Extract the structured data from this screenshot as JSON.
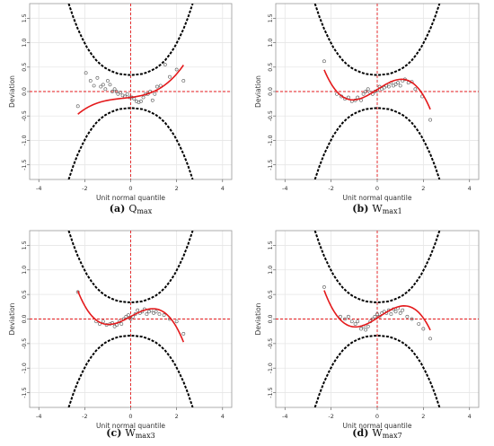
{
  "chart_data": [
    {
      "type": "scatter",
      "caption_letter": "(a)",
      "caption_main": "Q",
      "caption_sub": "max",
      "xlabel": "Unit normal quantile",
      "ylabel": "Deviation",
      "xlim": [
        -4.4,
        4.4
      ],
      "ylim": [
        -1.8,
        1.8
      ],
      "xticks": [
        -4,
        -2,
        0,
        2,
        4
      ],
      "yticks": [
        -1.5,
        -1.0,
        -0.5,
        0.0,
        0.5,
        1.0,
        1.5
      ],
      "xtick_labels": [
        "-4",
        "-2",
        "0",
        "2",
        "4"
      ],
      "ytick_labels": [
        "-1.5",
        "-1.0",
        "-0.5",
        "0.0",
        "0.5",
        "1.0",
        "1.5"
      ],
      "grid": true,
      "fit_poly": [
        -0.12,
        0.06,
        0.03,
        0.03
      ],
      "fit_range": [
        -2.3,
        2.3
      ],
      "points": [
        [
          -2.3,
          -0.3
        ],
        [
          -1.95,
          0.38
        ],
        [
          -1.75,
          0.22
        ],
        [
          -1.6,
          0.12
        ],
        [
          -1.45,
          0.28
        ],
        [
          -1.3,
          0.1
        ],
        [
          -1.2,
          0.14
        ],
        [
          -1.1,
          0.05
        ],
        [
          -1.0,
          0.22
        ],
        [
          -0.9,
          0.14
        ],
        [
          -0.8,
          0.0
        ],
        [
          -0.7,
          0.05
        ],
        [
          -0.62,
          0.0
        ],
        [
          -0.55,
          -0.05
        ],
        [
          -0.45,
          -0.02
        ],
        [
          -0.35,
          -0.08
        ],
        [
          -0.25,
          -0.1
        ],
        [
          -0.15,
          -0.05
        ],
        [
          -0.05,
          -0.12
        ],
        [
          0.05,
          -0.12
        ],
        [
          0.15,
          -0.15
        ],
        [
          0.25,
          -0.2
        ],
        [
          0.35,
          -0.22
        ],
        [
          0.45,
          -0.2
        ],
        [
          0.55,
          -0.12
        ],
        [
          0.65,
          -0.05
        ],
        [
          0.75,
          -0.05
        ],
        [
          0.85,
          0.0
        ],
        [
          0.95,
          -0.18
        ],
        [
          1.05,
          -0.05
        ],
        [
          1.15,
          0.1
        ],
        [
          1.3,
          0.12
        ],
        [
          1.5,
          0.55
        ],
        [
          1.7,
          0.3
        ],
        [
          2.0,
          0.45
        ],
        [
          2.3,
          0.22
        ]
      ],
      "confidence_curves": [
        {
          "x": [
            -2.7,
            -2.5,
            -2.3,
            -2.1,
            -1.9,
            -1.7,
            -1.5,
            -1.3,
            -1.1,
            -0.9,
            -0.7,
            -0.5,
            -0.3,
            -0.1,
            0.0,
            0.1,
            0.3,
            0.5,
            0.7,
            0.9,
            1.1,
            1.3,
            1.5,
            1.7,
            1.9,
            2.1,
            2.3,
            2.5,
            2.7
          ],
          "y": [
            1.8,
            1.52,
            1.28,
            1.08,
            0.9,
            0.76,
            0.64,
            0.55,
            0.48,
            0.43,
            0.39,
            0.36,
            0.35,
            0.34,
            0.34,
            0.34,
            0.35,
            0.36,
            0.39,
            0.43,
            0.48,
            0.55,
            0.64,
            0.76,
            0.9,
            1.08,
            1.28,
            1.52,
            1.8
          ]
        },
        {
          "x": [
            -2.7,
            -2.5,
            -2.3,
            -2.1,
            -1.9,
            -1.7,
            -1.5,
            -1.3,
            -1.1,
            -0.9,
            -0.7,
            -0.5,
            -0.3,
            -0.1,
            0.0,
            0.1,
            0.3,
            0.5,
            0.7,
            0.9,
            1.1,
            1.3,
            1.5,
            1.7,
            1.9,
            2.1,
            2.3,
            2.5,
            2.7
          ],
          "y": [
            -1.8,
            -1.52,
            -1.28,
            -1.08,
            -0.9,
            -0.76,
            -0.64,
            -0.55,
            -0.48,
            -0.43,
            -0.39,
            -0.36,
            -0.35,
            -0.34,
            -0.34,
            -0.34,
            -0.35,
            -0.36,
            -0.39,
            -0.43,
            -0.48,
            -0.55,
            -0.64,
            -0.76,
            -0.9,
            -1.08,
            -1.28,
            -1.52,
            -1.8
          ]
        }
      ]
    },
    {
      "type": "scatter",
      "caption_letter": "(b)",
      "caption_main": "W",
      "caption_sub": "max1",
      "xlabel": "Unit normal quantile",
      "ylabel": "Deviation",
      "xlim": [
        -4.4,
        4.4
      ],
      "ylim": [
        -1.8,
        1.8
      ],
      "xticks": [
        -4,
        -2,
        0,
        2,
        4
      ],
      "yticks": [
        -1.5,
        -1.0,
        -0.5,
        0.0,
        0.5,
        1.0,
        1.5
      ],
      "xtick_labels": [
        "-4",
        "-2",
        "0",
        "2",
        "4"
      ],
      "ytick_labels": [
        "-1.5",
        "-1.0",
        "-0.5",
        "0.0",
        "0.5",
        "1.0",
        "1.5"
      ],
      "grid": true,
      "fit_poly": [
        0.04,
        0.3,
        0.0,
        -0.09
      ],
      "fit_range": [
        -2.3,
        2.3
      ],
      "points": [
        [
          -2.3,
          0.62
        ],
        [
          -1.75,
          -0.05
        ],
        [
          -1.55,
          -0.1
        ],
        [
          -1.4,
          -0.15
        ],
        [
          -1.25,
          -0.12
        ],
        [
          -1.1,
          -0.2
        ],
        [
          -0.95,
          -0.18
        ],
        [
          -0.85,
          -0.12
        ],
        [
          -0.7,
          -0.18
        ],
        [
          -0.6,
          -0.05
        ],
        [
          -0.5,
          0.0
        ],
        [
          -0.4,
          0.05
        ],
        [
          -0.3,
          -0.02
        ],
        [
          -0.2,
          -0.05
        ],
        [
          -0.1,
          0.0
        ],
        [
          0.0,
          0.02
        ],
        [
          0.1,
          0.1
        ],
        [
          0.2,
          0.05
        ],
        [
          0.3,
          0.08
        ],
        [
          0.4,
          0.12
        ],
        [
          0.5,
          0.1
        ],
        [
          0.6,
          0.18
        ],
        [
          0.7,
          0.12
        ],
        [
          0.8,
          0.15
        ],
        [
          0.9,
          0.18
        ],
        [
          1.0,
          0.12
        ],
        [
          1.1,
          0.22
        ],
        [
          1.2,
          0.25
        ],
        [
          1.35,
          0.18
        ],
        [
          1.5,
          0.2
        ],
        [
          1.65,
          0.05
        ],
        [
          1.95,
          -0.1
        ],
        [
          2.3,
          -0.58
        ]
      ],
      "confidence_curves": [
        {
          "x": [
            -2.7,
            -2.5,
            -2.3,
            -2.1,
            -1.9,
            -1.7,
            -1.5,
            -1.3,
            -1.1,
            -0.9,
            -0.7,
            -0.5,
            -0.3,
            -0.1,
            0.0,
            0.1,
            0.3,
            0.5,
            0.7,
            0.9,
            1.1,
            1.3,
            1.5,
            1.7,
            1.9,
            2.1,
            2.3,
            2.5,
            2.7
          ],
          "y": [
            1.8,
            1.52,
            1.28,
            1.08,
            0.9,
            0.76,
            0.64,
            0.55,
            0.48,
            0.43,
            0.39,
            0.36,
            0.35,
            0.34,
            0.34,
            0.34,
            0.35,
            0.36,
            0.39,
            0.43,
            0.48,
            0.55,
            0.64,
            0.76,
            0.9,
            1.08,
            1.28,
            1.52,
            1.8
          ]
        },
        {
          "x": [
            -2.7,
            -2.5,
            -2.3,
            -2.1,
            -1.9,
            -1.7,
            -1.5,
            -1.3,
            -1.1,
            -0.9,
            -0.7,
            -0.5,
            -0.3,
            -0.1,
            0.0,
            0.1,
            0.3,
            0.5,
            0.7,
            0.9,
            1.1,
            1.3,
            1.5,
            1.7,
            1.9,
            2.1,
            2.3,
            2.5,
            2.7
          ],
          "y": [
            -1.8,
            -1.52,
            -1.28,
            -1.08,
            -0.9,
            -0.76,
            -0.64,
            -0.55,
            -0.48,
            -0.43,
            -0.39,
            -0.36,
            -0.35,
            -0.34,
            -0.34,
            -0.34,
            -0.35,
            -0.36,
            -0.39,
            -0.43,
            -0.48,
            -0.55,
            -0.64,
            -0.76,
            -0.9,
            -1.08,
            -1.28,
            -1.52,
            -1.8
          ]
        }
      ]
    },
    {
      "type": "scatter",
      "caption_letter": "(c)",
      "caption_main": "W",
      "caption_sub": "max3",
      "xlabel": "Unit normal quantile",
      "ylabel": "Deviation",
      "xlim": [
        -4.4,
        4.4
      ],
      "ylim": [
        -1.8,
        1.8
      ],
      "xticks": [
        -4,
        -2,
        0,
        2,
        4
      ],
      "yticks": [
        -1.5,
        -1.0,
        -0.5,
        0.0,
        0.5,
        1.0,
        1.5
      ],
      "xtick_labels": [
        "-4",
        "-2",
        "0",
        "2",
        "4"
      ],
      "ytick_labels": [
        "-1.5",
        "-1.0",
        "-0.5",
        "0.0",
        "0.5",
        "1.0",
        "1.5"
      ],
      "grid": true,
      "fit_poly": [
        0.05,
        0.25,
        0.0,
        -0.09
      ],
      "fit_range": [
        -2.3,
        2.3
      ],
      "points": [
        [
          -2.3,
          0.55
        ],
        [
          -1.5,
          -0.05
        ],
        [
          -1.35,
          -0.1
        ],
        [
          -1.2,
          -0.05
        ],
        [
          -1.05,
          -0.12
        ],
        [
          -0.9,
          -0.1
        ],
        [
          -0.8,
          -0.08
        ],
        [
          -0.7,
          -0.15
        ],
        [
          -0.6,
          -0.12
        ],
        [
          -0.5,
          -0.05
        ],
        [
          -0.4,
          -0.1
        ],
        [
          -0.3,
          0.0
        ],
        [
          -0.2,
          0.05
        ],
        [
          -0.1,
          0.08
        ],
        [
          0.0,
          0.0
        ],
        [
          0.1,
          0.05
        ],
        [
          0.2,
          0.1
        ],
        [
          0.3,
          0.18
        ],
        [
          0.4,
          0.12
        ],
        [
          0.5,
          0.15
        ],
        [
          0.6,
          0.2
        ],
        [
          0.7,
          0.1
        ],
        [
          0.8,
          0.15
        ],
        [
          0.9,
          0.18
        ],
        [
          1.0,
          0.12
        ],
        [
          1.1,
          0.15
        ],
        [
          1.25,
          0.1
        ],
        [
          1.45,
          0.08
        ],
        [
          1.7,
          0.0
        ],
        [
          2.0,
          -0.05
        ],
        [
          2.3,
          -0.3
        ]
      ],
      "confidence_curves": [
        {
          "x": [
            -2.7,
            -2.5,
            -2.3,
            -2.1,
            -1.9,
            -1.7,
            -1.5,
            -1.3,
            -1.1,
            -0.9,
            -0.7,
            -0.5,
            -0.3,
            -0.1,
            0.0,
            0.1,
            0.3,
            0.5,
            0.7,
            0.9,
            1.1,
            1.3,
            1.5,
            1.7,
            1.9,
            2.1,
            2.3,
            2.5,
            2.7
          ],
          "y": [
            1.8,
            1.52,
            1.28,
            1.08,
            0.9,
            0.76,
            0.64,
            0.55,
            0.48,
            0.43,
            0.39,
            0.36,
            0.35,
            0.34,
            0.34,
            0.34,
            0.35,
            0.36,
            0.39,
            0.43,
            0.48,
            0.55,
            0.64,
            0.76,
            0.9,
            1.08,
            1.28,
            1.52,
            1.8
          ]
        },
        {
          "x": [
            -2.7,
            -2.5,
            -2.3,
            -2.1,
            -1.9,
            -1.7,
            -1.5,
            -1.3,
            -1.1,
            -0.9,
            -0.7,
            -0.5,
            -0.3,
            -0.1,
            0.0,
            0.1,
            0.3,
            0.5,
            0.7,
            0.9,
            1.1,
            1.3,
            1.5,
            1.7,
            1.9,
            2.1,
            2.3,
            2.5,
            2.7
          ],
          "y": [
            -1.8,
            -1.52,
            -1.28,
            -1.08,
            -0.9,
            -0.76,
            -0.64,
            -0.55,
            -0.48,
            -0.43,
            -0.39,
            -0.36,
            -0.35,
            -0.34,
            -0.34,
            -0.34,
            -0.35,
            -0.36,
            -0.39,
            -0.43,
            -0.48,
            -0.55,
            -0.64,
            -0.76,
            -0.9,
            -1.08,
            -1.28,
            -1.52,
            -1.8
          ]
        }
      ]
    },
    {
      "type": "scatter",
      "caption_letter": "(d)",
      "caption_main": "W",
      "caption_sub": "max7",
      "xlabel": "Unit normal quantile",
      "ylabel": "Deviation",
      "xlim": [
        -4.4,
        4.4
      ],
      "ylim": [
        -1.8,
        1.8
      ],
      "xticks": [
        -4,
        -2,
        0,
        2,
        4
      ],
      "yticks": [
        -1.5,
        -1.0,
        -0.5,
        0.0,
        0.5,
        1.0,
        1.5
      ],
      "xtick_labels": [
        "-4",
        "-2",
        "0",
        "2",
        "4"
      ],
      "ytick_labels": [
        "-1.5",
        "-1.0",
        "-0.5",
        "0.0",
        "0.5",
        "1.0",
        "1.5"
      ],
      "grid": true,
      "fit_poly": [
        0.02,
        0.3,
        0.03,
        -0.09
      ],
      "fit_range": [
        -2.3,
        2.3
      ],
      "points": [
        [
          -2.3,
          0.65
        ],
        [
          -1.6,
          0.05
        ],
        [
          -1.4,
          0.0
        ],
        [
          -1.25,
          0.05
        ],
        [
          -1.1,
          -0.05
        ],
        [
          -0.95,
          -0.1
        ],
        [
          -0.85,
          -0.05
        ],
        [
          -0.7,
          -0.2
        ],
        [
          -0.6,
          -0.15
        ],
        [
          -0.5,
          -0.22
        ],
        [
          -0.4,
          -0.15
        ],
        [
          -0.3,
          -0.05
        ],
        [
          -0.2,
          0.0
        ],
        [
          -0.1,
          0.05
        ],
        [
          0.0,
          0.1
        ],
        [
          0.1,
          0.05
        ],
        [
          0.2,
          0.12
        ],
        [
          0.3,
          0.15
        ],
        [
          0.4,
          0.12
        ],
        [
          0.5,
          0.18
        ],
        [
          0.6,
          0.1
        ],
        [
          0.7,
          0.2
        ],
        [
          0.8,
          0.15
        ],
        [
          0.9,
          0.22
        ],
        [
          1.0,
          0.12
        ],
        [
          1.1,
          0.18
        ],
        [
          1.3,
          0.05
        ],
        [
          1.5,
          0.0
        ],
        [
          1.8,
          -0.1
        ],
        [
          2.0,
          -0.2
        ],
        [
          2.3,
          -0.4
        ]
      ],
      "confidence_curves": [
        {
          "x": [
            -2.7,
            -2.5,
            -2.3,
            -2.1,
            -1.9,
            -1.7,
            -1.5,
            -1.3,
            -1.1,
            -0.9,
            -0.7,
            -0.5,
            -0.3,
            -0.1,
            0.0,
            0.1,
            0.3,
            0.5,
            0.7,
            0.9,
            1.1,
            1.3,
            1.5,
            1.7,
            1.9,
            2.1,
            2.3,
            2.5,
            2.7
          ],
          "y": [
            1.8,
            1.52,
            1.28,
            1.08,
            0.9,
            0.76,
            0.64,
            0.55,
            0.48,
            0.43,
            0.39,
            0.36,
            0.35,
            0.34,
            0.34,
            0.34,
            0.35,
            0.36,
            0.39,
            0.43,
            0.48,
            0.55,
            0.64,
            0.76,
            0.9,
            1.08,
            1.28,
            1.52,
            1.8
          ]
        },
        {
          "x": [
            -2.7,
            -2.5,
            -2.3,
            -2.1,
            -1.9,
            -1.7,
            -1.5,
            -1.3,
            -1.1,
            -0.9,
            -0.7,
            -0.5,
            -0.3,
            -0.1,
            0.0,
            0.1,
            0.3,
            0.5,
            0.7,
            0.9,
            1.1,
            1.3,
            1.5,
            1.7,
            1.9,
            2.1,
            2.3,
            2.5,
            2.7
          ],
          "y": [
            -1.8,
            -1.52,
            -1.28,
            -1.08,
            -0.9,
            -0.76,
            -0.64,
            -0.55,
            -0.48,
            -0.43,
            -0.39,
            -0.36,
            -0.35,
            -0.34,
            -0.34,
            -0.34,
            -0.35,
            -0.36,
            -0.39,
            -0.43,
            -0.48,
            -0.55,
            -0.64,
            -0.76,
            -0.9,
            -1.08,
            -1.28,
            -1.52,
            -1.8
          ]
        }
      ]
    }
  ],
  "colors": {
    "fit": "#e41a1c",
    "reference": "#e41a1c",
    "confidence": "#000000",
    "points": "#555555",
    "grid": "#e6e6e6",
    "frame": "#999999"
  }
}
